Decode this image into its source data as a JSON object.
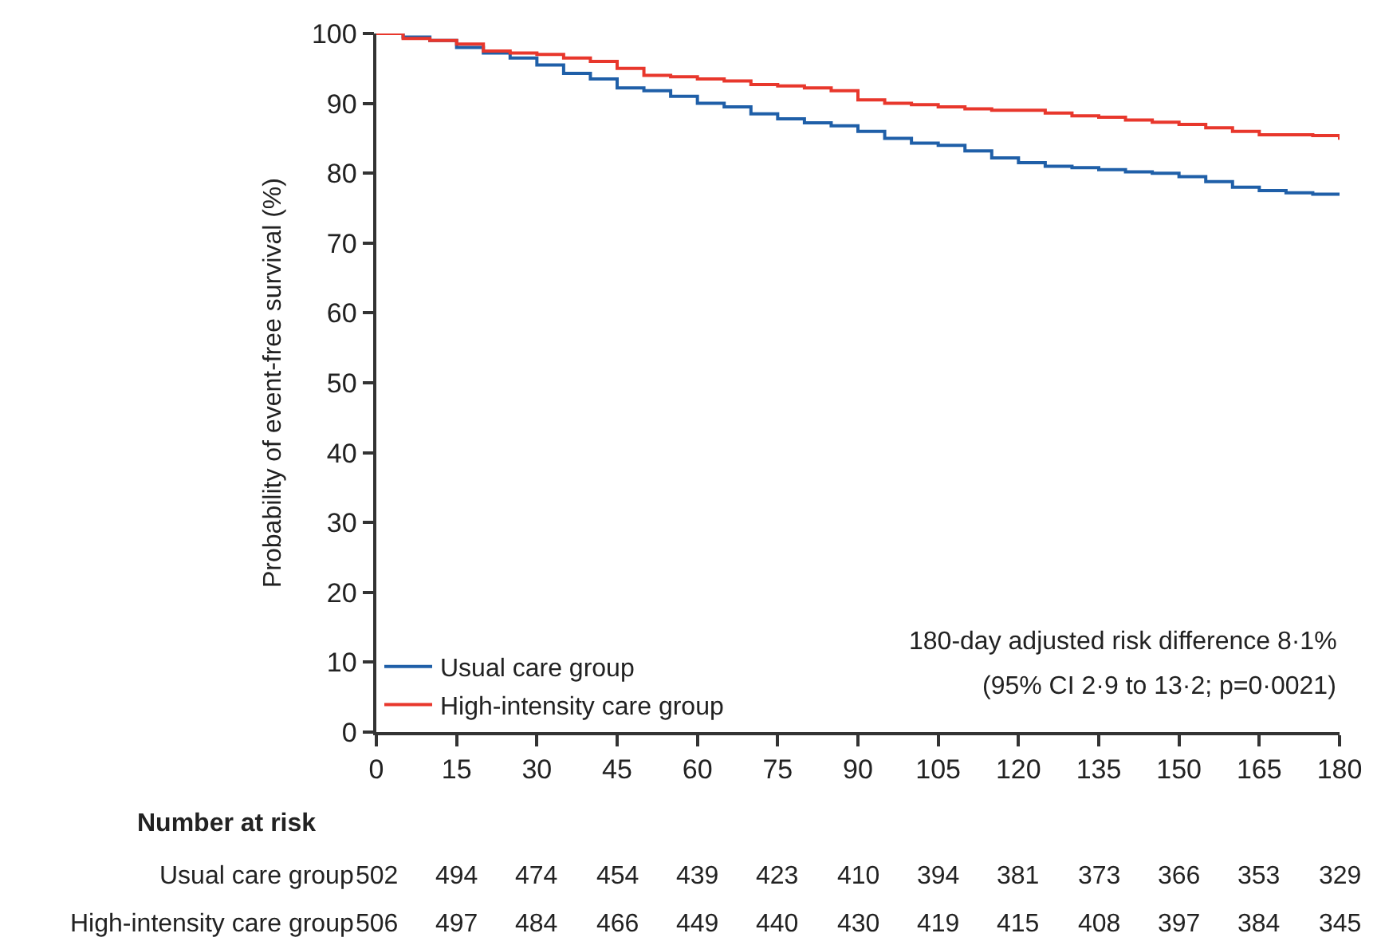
{
  "chart_data": {
    "type": "step",
    "ylabel": "Probability of event-free survival (%)",
    "xlim": [
      0,
      180
    ],
    "xticks": [
      0,
      15,
      30,
      45,
      60,
      75,
      90,
      105,
      120,
      135,
      150,
      165,
      180
    ],
    "ylim": [
      0,
      100
    ],
    "yticks": [
      0,
      10,
      20,
      30,
      40,
      50,
      60,
      70,
      80,
      90,
      100
    ],
    "legend": "bottom left",
    "marker": "none",
    "line_style": "solid",
    "series": [
      {
        "name": "Usual care group",
        "color": "#1f5fa8",
        "x": [
          0,
          5,
          10,
          15,
          20,
          25,
          30,
          35,
          40,
          45,
          50,
          55,
          60,
          65,
          70,
          75,
          80,
          85,
          90,
          95,
          100,
          105,
          110,
          115,
          120,
          125,
          130,
          135,
          140,
          145,
          150,
          155,
          160,
          165,
          170,
          175,
          180
        ],
        "values": [
          100,
          99.5,
          99,
          98,
          97.2,
          96.5,
          95.5,
          94.3,
          93.5,
          92.2,
          91.8,
          91,
          90,
          89.5,
          88.5,
          87.8,
          87.2,
          86.8,
          86,
          85,
          84.3,
          84,
          83.2,
          82.2,
          81.5,
          81,
          80.8,
          80.5,
          80.2,
          80,
          79.5,
          78.8,
          78,
          77.5,
          77.2,
          77,
          77
        ]
      },
      {
        "name": "High-intensity care group",
        "color": "#e8372c",
        "x": [
          0,
          5,
          10,
          15,
          20,
          25,
          30,
          35,
          40,
          45,
          50,
          55,
          60,
          65,
          70,
          75,
          80,
          85,
          90,
          95,
          100,
          105,
          110,
          115,
          120,
          125,
          130,
          135,
          140,
          145,
          150,
          155,
          160,
          165,
          170,
          175,
          180
        ],
        "values": [
          100,
          99.3,
          99,
          98.5,
          97.5,
          97.2,
          97,
          96.5,
          96,
          95,
          94,
          93.8,
          93.5,
          93.2,
          92.7,
          92.5,
          92.2,
          91.8,
          90.5,
          90,
          89.8,
          89.5,
          89.2,
          89,
          89,
          88.6,
          88.2,
          88,
          87.6,
          87.3,
          87,
          86.5,
          86,
          85.5,
          85.5,
          85.4,
          84.8
        ]
      }
    ],
    "annotations": [
      "180-day adjusted risk difference 8·1%",
      "(95% CI 2·9 to 13·2; p=0·0021)",
      "Number at risk",
      "Usual care group",
      "502",
      "494",
      "474",
      "454",
      "439",
      "423",
      "410",
      "394",
      "381",
      "373",
      "366",
      "353",
      "329",
      "High-intensity care group",
      "506",
      "497",
      "484",
      "466",
      "449",
      "440",
      "430",
      "419",
      "415",
      "408",
      "397",
      "384",
      "345"
    ]
  }
}
